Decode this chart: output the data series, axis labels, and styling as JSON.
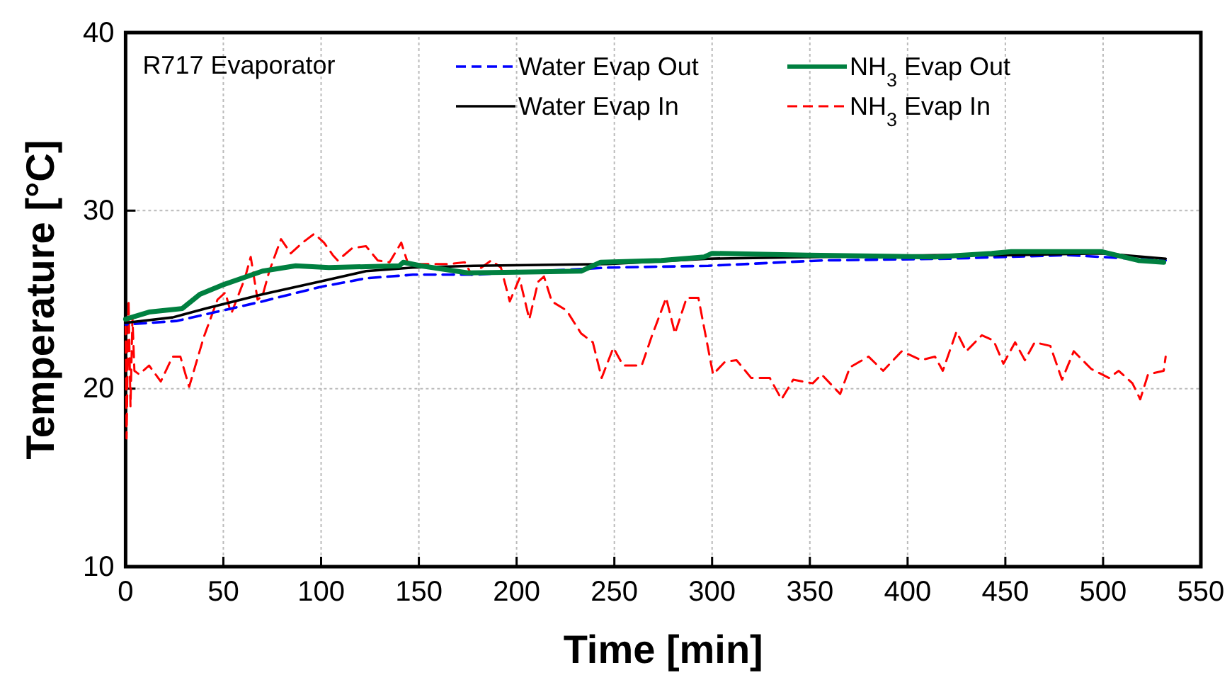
{
  "chart_data": {
    "type": "line",
    "xlabel": "Time [min]",
    "ylabel": "Temperature [°C]",
    "annotations": [
      "R717 Evaporator"
    ],
    "xlim": [
      0,
      550
    ],
    "xticks": [
      0,
      50,
      100,
      150,
      200,
      250,
      300,
      350,
      400,
      450,
      500,
      550
    ],
    "ylim": [
      10,
      40
    ],
    "yticks": [
      10,
      20,
      30,
      40
    ],
    "grid": true,
    "legend": "top",
    "series": [
      {
        "name": "Water Evap Out",
        "color": "#0000ff",
        "line_style": "dashed",
        "x": [
          0,
          26,
          46,
          70,
          99,
          123,
          147,
          178,
          247,
          298,
          356,
          421,
          482,
          499,
          532
        ],
        "values": [
          23.6,
          23.8,
          24.3,
          24.9,
          25.7,
          26.2,
          26.4,
          26.4,
          26.8,
          26.9,
          27.2,
          27.3,
          27.5,
          27.4,
          27.2
        ]
      },
      {
        "name": "Water Evap In",
        "color": "#000000",
        "line_style": "solid",
        "x": [
          0,
          24,
          41,
          70,
          99,
          123,
          147,
          178,
          247,
          298,
          356,
          421,
          452,
          499,
          532
        ],
        "values": [
          23.7,
          24,
          24.5,
          25.3,
          26,
          26.6,
          26.8,
          26.9,
          27,
          27.3,
          27.4,
          27.5,
          27.5,
          27.6,
          27.3
        ]
      },
      {
        "name": "NH$_{3}$ Evap Out",
        "color": "#008040",
        "line_style": "solid",
        "x": [
          0,
          12,
          29,
          38,
          49,
          70,
          87,
          104,
          140,
          142,
          151,
          175,
          233,
          243,
          274,
          296,
          300,
          349,
          414,
          443,
          453,
          499,
          518,
          531
        ],
        "values": [
          23.9,
          24.3,
          24.5,
          25.3,
          25.8,
          26.6,
          26.9,
          26.8,
          26.9,
          27.1,
          26.9,
          26.5,
          26.6,
          27.1,
          27.2,
          27.4,
          27.6,
          27.5,
          27.4,
          27.6,
          27.7,
          27.7,
          27.2,
          27.1
        ]
      },
      {
        "name": "NH$_{3}$ Evap In",
        "color": "#ff0000",
        "line_style": "dashed",
        "x": [
          0,
          0.5,
          1.5,
          2.5,
          3.5,
          4.5,
          7,
          12,
          18,
          24,
          28,
          32.5,
          40,
          47,
          51,
          54,
          61,
          64,
          67.5,
          70,
          73.5,
          79.5,
          84.5,
          90.5,
          96.5,
          101.5,
          106,
          108.5,
          116,
          123,
          129,
          135,
          141,
          144.5,
          166,
          173.5,
          177,
          187,
          192,
          196.5,
          201.5,
          206.5,
          211,
          214,
          218,
          225.5,
          233,
          239,
          243.5,
          249.5,
          254.5,
          264,
          269,
          276.5,
          281,
          287,
          293,
          300.5,
          306.5,
          312.5,
          320,
          329.5,
          335.5,
          341.5,
          351.5,
          356,
          365.5,
          370.5,
          380,
          387.5,
          397,
          407,
          414,
          418,
          425,
          430,
          438,
          444,
          449,
          455,
          460,
          465,
          473,
          479,
          485,
          494,
          503,
          508,
          515,
          519,
          523,
          531,
          532
        ],
        "values": [
          23.5,
          17.2,
          25,
          19,
          24,
          21,
          20.8,
          21.3,
          20.4,
          21.8,
          21.8,
          20.1,
          22.9,
          25,
          25.4,
          24.2,
          26.2,
          27.4,
          25,
          25.2,
          26.6,
          28.4,
          27.6,
          28.2,
          28.7,
          28.2,
          27.5,
          27.2,
          27.9,
          28,
          27.2,
          27.1,
          28.2,
          27,
          27,
          27.1,
          26.4,
          27.2,
          26.8,
          24.9,
          26.2,
          23.9,
          26,
          26.3,
          24.9,
          24.4,
          23.1,
          22.6,
          20.6,
          22.3,
          21.3,
          21.3,
          22.9,
          25.1,
          23.1,
          25.1,
          25.1,
          20.8,
          21.5,
          21.6,
          20.6,
          20.6,
          19.4,
          20.5,
          20.3,
          20.8,
          19.7,
          21.2,
          21.8,
          21,
          22.1,
          21.6,
          21.8,
          21,
          23.2,
          22.1,
          23,
          22.7,
          21.4,
          22.6,
          21.6,
          22.6,
          22.4,
          20.5,
          22.1,
          21.1,
          20.6,
          21,
          20.3,
          19.4,
          20.8,
          21,
          21.8
        ]
      }
    ]
  }
}
